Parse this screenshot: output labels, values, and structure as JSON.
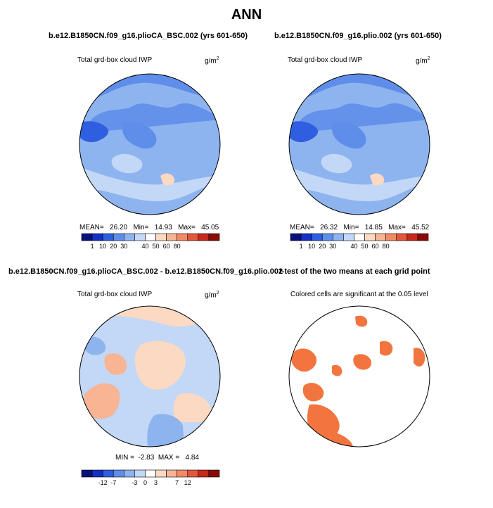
{
  "title": "ANN",
  "panels": [
    {
      "case_title": "b.e12.B1850CN.f09_g16.plioCA_BSC.002 (yrs 601-650)",
      "variable": "Total grd-box cloud IWP",
      "units_base": "g/m",
      "units_exp": "2",
      "stats": {
        "mean_label": "MEAN=",
        "mean": "26.20",
        "min_label": "Min=",
        "min": "14.93",
        "max_label": "Max=",
        "max": "45.05"
      }
    },
    {
      "case_title": "b.e12.B1850CN.f09_g16.plio.002 (yrs 601-650)",
      "variable": "Total grd-box cloud IWP",
      "units_base": "g/m",
      "units_exp": "2",
      "stats": {
        "mean_label": "MEAN=",
        "mean": "26.32",
        "min_label": "Min=",
        "min": "14.85",
        "max_label": "Max=",
        "max": "45.52"
      }
    },
    {
      "case_title": "b.e12.B1850CN.f09_g16.plioCA_BSC.002 - b.e12.B1850CN.f09_g16.plio.002",
      "variable": "Total grd-box cloud IWP",
      "units_base": "g/m",
      "units_exp": "2",
      "stats": {
        "min_label": "MIN =",
        "min": "-2.83",
        "max_label": "MAX =",
        "max": "4.84"
      }
    },
    {
      "case_title": "t-test of the two means at each grid point",
      "variable": "Colored cells are significant at the 0.05 level"
    }
  ],
  "abs_colorbar": {
    "colors": [
      "#08127a",
      "#1530c4",
      "#2f5fe0",
      "#5f8eea",
      "#8eb4f0",
      "#c2d8f6",
      "#ffffff",
      "#fbd9c2",
      "#f8b493",
      "#f28a66",
      "#e4573b",
      "#c52a1c",
      "#8a0c08"
    ],
    "labels": [
      "1",
      "10",
      "20",
      "30",
      "40",
      "50",
      "60",
      "80"
    ],
    "label_after_box": [
      1,
      2,
      3,
      4,
      6,
      7,
      8,
      9
    ]
  },
  "diff_colorbar": {
    "colors": [
      "#08127a",
      "#1530c4",
      "#2f5fe0",
      "#5f8eea",
      "#8eb4f0",
      "#c2d8f6",
      "#ffffff",
      "#fbd9c2",
      "#f8b493",
      "#f28a66",
      "#e4573b",
      "#c52a1c",
      "#8a0c08"
    ],
    "labels": [
      "-12",
      "-7",
      "-3",
      "0",
      "3",
      "7",
      "12"
    ],
    "label_after_box": [
      2,
      3,
      5,
      6,
      7,
      9,
      10
    ]
  },
  "map_colors": {
    "abs_background": "#8eb4f0",
    "abs_dark": "#5f8eea",
    "abs_darker": "#2f5fe0",
    "abs_light": "#c2d8f6",
    "abs_warm": "#fbd9c2",
    "diff_background": "#c2d8f6",
    "diff_warm": "#fbd9c2",
    "diff_warm2": "#f8b493",
    "diff_cool": "#8eb4f0",
    "significance": "#f2753f",
    "coastline": "#000000"
  }
}
